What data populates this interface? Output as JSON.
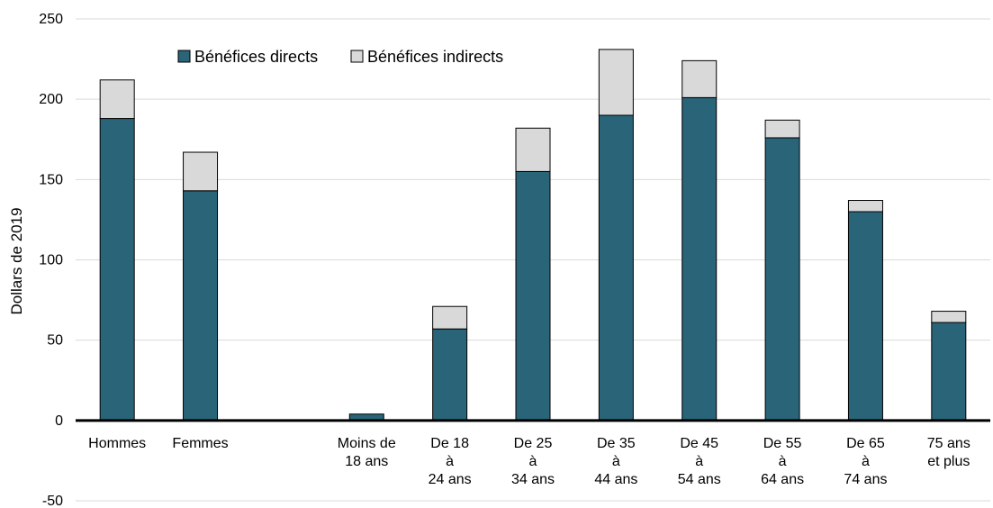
{
  "chart_data": {
    "type": "bar",
    "stacked": true,
    "ylabel": "Dollars de 2019",
    "xlabel": "",
    "title": "",
    "ylim": [
      -50,
      250
    ],
    "yticks": [
      -50,
      0,
      50,
      100,
      150,
      200,
      250
    ],
    "grid": true,
    "legend_position": "top-left",
    "categories": [
      [
        "Hommes"
      ],
      [
        "Femmes"
      ],
      [],
      [
        "Moins de",
        "18 ans"
      ],
      [
        "De 18",
        "à",
        "24 ans"
      ],
      [
        "De 25",
        "à",
        "34 ans"
      ],
      [
        "De 35",
        "à",
        "44 ans"
      ],
      [
        "De 45",
        "à",
        "54 ans"
      ],
      [
        "De 55",
        "à",
        "64 ans"
      ],
      [
        "De 65",
        "à",
        "74 ans"
      ],
      [
        "75 ans",
        "et plus"
      ]
    ],
    "series": [
      {
        "name": "Bénéfices directs",
        "color": "#2a6478",
        "values": [
          188,
          143,
          null,
          4,
          57,
          155,
          190,
          201,
          176,
          130,
          61
        ]
      },
      {
        "name": "Bénéfices indirects",
        "color": "#d9d9d9",
        "values": [
          24,
          24,
          null,
          0,
          14,
          27,
          41,
          23,
          11,
          7,
          7
        ]
      }
    ]
  }
}
